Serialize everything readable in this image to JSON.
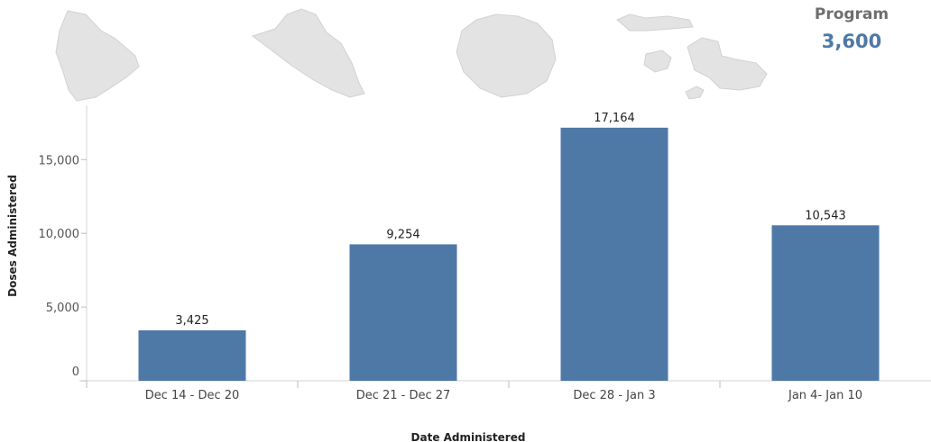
{
  "program": {
    "label": "Program",
    "value": "3,600"
  },
  "colors": {
    "bar": "#4e79a7",
    "island": "#e3e3e3"
  },
  "chart_data": {
    "type": "bar",
    "categories": [
      "Dec 14 - Dec 20",
      "Dec 21 - Dec 27",
      "Dec 28 - Jan 3",
      "Jan 4- Jan 10"
    ],
    "values": [
      3425,
      9254,
      17164,
      10543
    ],
    "value_labels": [
      "3,425",
      "9,254",
      "17,164",
      "10,543"
    ],
    "xlabel": "Date Administered",
    "ylabel": "Doses Administered",
    "yticks": [
      0,
      5000,
      10000,
      15000
    ],
    "ytick_labels": [
      "0",
      "5,000",
      "10,000",
      "15,000"
    ],
    "ylim": [
      0,
      18900
    ],
    "grid": false,
    "decorations": [
      "hawaii-island-icon",
      "oahu-island-icon",
      "kauai-island-icon",
      "maui-county-islands-icon"
    ]
  }
}
